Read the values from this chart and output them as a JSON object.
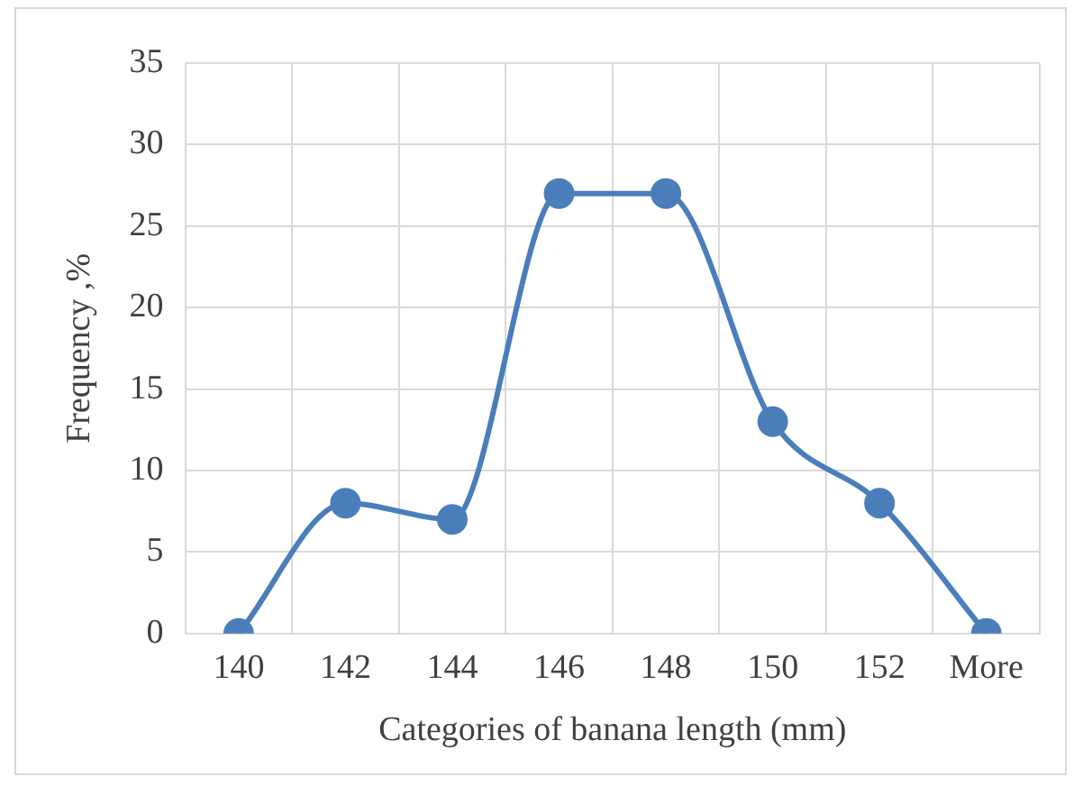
{
  "chart_data": {
    "type": "line",
    "xlabel": "Categories of banana length (mm)",
    "ylabel": "Frequency ,%",
    "categories": [
      "140",
      "142",
      "144",
      "146",
      "148",
      "150",
      "152",
      "More"
    ],
    "series": [
      {
        "color": "#4a7ebb",
        "values": [
          0,
          8,
          7,
          27,
          27,
          13,
          8,
          0
        ]
      }
    ],
    "ylim": [
      0,
      35
    ],
    "yticks": [
      0,
      5,
      10,
      15,
      20,
      25,
      30,
      35
    ],
    "grid": true,
    "legend": false,
    "marker": "circle",
    "line_style": "solid"
  }
}
